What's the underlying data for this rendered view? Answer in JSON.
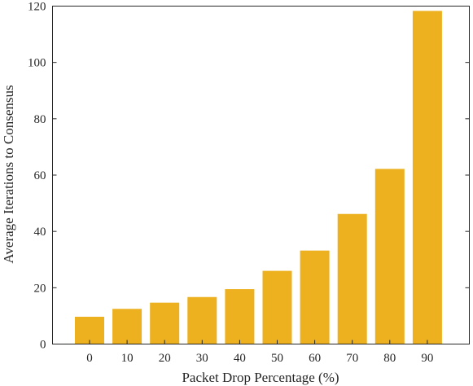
{
  "chart_data": {
    "type": "bar",
    "title": "",
    "xlabel": "Packet Drop Percentage (%)",
    "ylabel": "Average Iterations to Consensus",
    "categories": [
      "0",
      "10",
      "20",
      "30",
      "40",
      "50",
      "60",
      "70",
      "80",
      "90"
    ],
    "values": [
      9.7,
      12.5,
      14.7,
      16.7,
      19.5,
      26.0,
      33.2,
      46.2,
      62.2,
      118.3
    ],
    "ylim": [
      0,
      120
    ],
    "yticks": [
      "0",
      "20",
      "40",
      "60",
      "80",
      "100",
      "120"
    ],
    "grid": false,
    "legend": "none",
    "colors": {
      "bar": "#EDB120",
      "axis": "#262626"
    }
  }
}
